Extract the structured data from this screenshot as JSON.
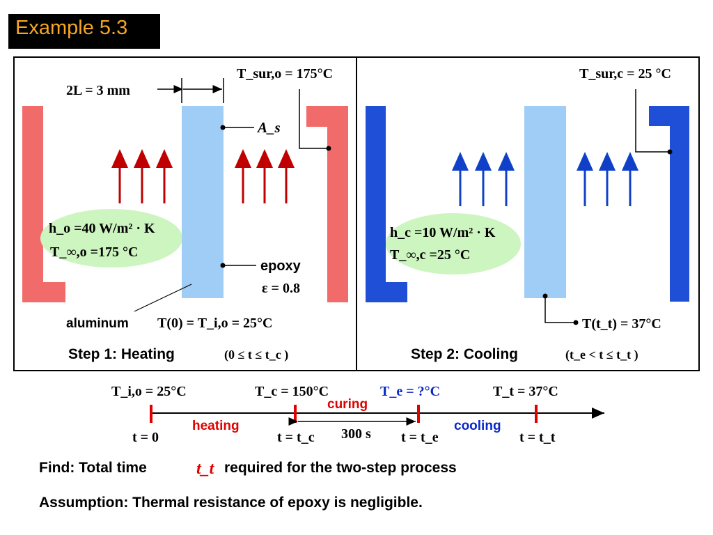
{
  "title": "Example 5.3",
  "heating": {
    "gap": "2L = 3 mm",
    "tsur": "T_sur,o = 175°C",
    "As": "A_s",
    "h": "h_o =40 W/m² · K",
    "tinf": "T_∞,o =175 °C",
    "epoxy": "epoxy",
    "eps": "ε = 0.8",
    "aluminum": "aluminum",
    "tinit": "T(0) = T_i,o = 25°C",
    "step_label": "Step 1: Heating",
    "step_range": "(0 ≤ t ≤ t_c )"
  },
  "cooling": {
    "tsur": "T_sur,c = 25 °C",
    "h": "h_c =10 W/m² · K",
    "tinf": "T_∞,c =25 °C",
    "tt": "T(t_t) = 37°C",
    "step_label": "Step 2: Cooling",
    "step_range": "(t_e < t ≤ t_t )"
  },
  "timeline": {
    "temps": [
      "T_i,o = 25°C",
      "T_c = 150°C",
      "T_e = ?°C",
      "T_t = 37°C"
    ],
    "times": [
      "t = 0",
      "t = t_c",
      "t = t_e",
      "t = t_t"
    ],
    "phases": {
      "heating": "heating",
      "curing": "curing",
      "cooling": "cooling"
    },
    "interval": "300 s"
  },
  "find": {
    "label": "Find: Total time",
    "symbol": "t_t",
    "rest": "required for the two-step process"
  },
  "assumption": "Assumption: Thermal resistance of epoxy is negligible.",
  "colors": {
    "title_bg": "#000000",
    "title_fg": "#f5a623",
    "heat_wall": "#f26b6b",
    "heat_arrow": "#c00000",
    "cool_wall": "#1f4fd6",
    "cool_arrow": "#1040c8",
    "plate": "#9fcdf5",
    "fluid": "#cdf5c0",
    "accent_red": "#e00000",
    "accent_blue": "#0a28c8"
  }
}
